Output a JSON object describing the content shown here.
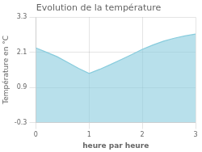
{
  "chart_data": {
    "type": "area",
    "title": "Evolution de la température",
    "xlabel": "heure par heure",
    "ylabel": "Température en °C",
    "x": [
      0,
      0.2,
      0.4,
      0.6,
      0.8,
      1.0,
      1.2,
      1.4,
      1.6,
      1.8,
      2.0,
      2.2,
      2.4,
      2.6,
      2.8,
      3.0
    ],
    "values": [
      2.25,
      2.1,
      1.95,
      1.75,
      1.55,
      1.38,
      1.52,
      1.68,
      1.85,
      2.02,
      2.2,
      2.35,
      2.48,
      2.58,
      2.66,
      2.72
    ],
    "color": "#88ccdd",
    "xlim": [
      0,
      3
    ],
    "ylim": [
      -0.3,
      3.3
    ],
    "xticks": [
      0,
      1,
      2,
      3
    ],
    "yticks": [
      -0.3,
      0.9,
      2.1,
      3.3
    ],
    "grid": true
  }
}
